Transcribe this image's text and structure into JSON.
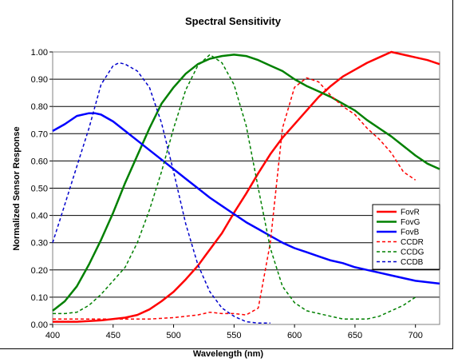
{
  "chart_data": {
    "type": "line",
    "title": "Spectral Sensitivity",
    "xlabel": "Wavelength (nm)",
    "ylabel": "Normalized Sensor Response",
    "xlim": [
      400,
      720
    ],
    "ylim": [
      0,
      1
    ],
    "xticks": [
      "400",
      "450",
      "500",
      "550",
      "600",
      "650",
      "700"
    ],
    "yticks": [
      "0.00",
      "0.10",
      "0.20",
      "0.30",
      "0.40",
      "0.50",
      "0.60",
      "0.70",
      "0.80",
      "0.90",
      "1.00"
    ],
    "grid": "horizontal",
    "legend_position": "right",
    "series": [
      {
        "name": "FovR",
        "color": "#ff0000",
        "dash": "solid",
        "x": [
          400,
          420,
          440,
          460,
          470,
          480,
          490,
          500,
          510,
          520,
          530,
          540,
          550,
          560,
          570,
          580,
          590,
          600,
          610,
          620,
          630,
          640,
          650,
          660,
          670,
          680,
          690,
          700,
          710,
          720
        ],
        "y": [
          0.01,
          0.01,
          0.015,
          0.025,
          0.035,
          0.055,
          0.085,
          0.12,
          0.165,
          0.215,
          0.275,
          0.335,
          0.41,
          0.48,
          0.555,
          0.625,
          0.685,
          0.735,
          0.785,
          0.835,
          0.875,
          0.91,
          0.935,
          0.96,
          0.98,
          1.0,
          0.99,
          0.98,
          0.97,
          0.955
        ]
      },
      {
        "name": "FovG",
        "color": "#008000",
        "dash": "solid",
        "x": [
          400,
          410,
          420,
          430,
          440,
          450,
          460,
          470,
          480,
          490,
          500,
          510,
          520,
          530,
          540,
          550,
          560,
          570,
          580,
          590,
          600,
          610,
          620,
          630,
          640,
          650,
          660,
          670,
          680,
          690,
          700,
          710,
          720
        ],
        "y": [
          0.05,
          0.085,
          0.14,
          0.22,
          0.31,
          0.41,
          0.52,
          0.62,
          0.72,
          0.81,
          0.87,
          0.92,
          0.955,
          0.975,
          0.985,
          0.99,
          0.985,
          0.97,
          0.95,
          0.93,
          0.9,
          0.875,
          0.855,
          0.835,
          0.81,
          0.785,
          0.75,
          0.72,
          0.69,
          0.655,
          0.62,
          0.59,
          0.57
        ]
      },
      {
        "name": "FovB",
        "color": "#0000ff",
        "dash": "solid",
        "x": [
          400,
          410,
          420,
          430,
          435,
          440,
          450,
          460,
          470,
          480,
          490,
          500,
          510,
          520,
          530,
          540,
          550,
          560,
          570,
          580,
          590,
          600,
          610,
          620,
          630,
          640,
          650,
          660,
          670,
          680,
          690,
          700,
          710,
          720
        ],
        "y": [
          0.71,
          0.735,
          0.765,
          0.775,
          0.775,
          0.77,
          0.745,
          0.71,
          0.675,
          0.64,
          0.605,
          0.57,
          0.535,
          0.5,
          0.465,
          0.435,
          0.405,
          0.375,
          0.35,
          0.325,
          0.3,
          0.28,
          0.265,
          0.25,
          0.235,
          0.225,
          0.21,
          0.2,
          0.19,
          0.18,
          0.17,
          0.16,
          0.155,
          0.15
        ]
      },
      {
        "name": "CCDR",
        "color": "#ff0000",
        "dash": "dashed",
        "x": [
          400,
          460,
          480,
          500,
          520,
          530,
          540,
          550,
          560,
          570,
          580,
          590,
          600,
          610,
          620,
          630,
          640,
          650,
          660,
          670,
          680,
          690,
          700
        ],
        "y": [
          0.02,
          0.02,
          0.02,
          0.025,
          0.035,
          0.045,
          0.04,
          0.04,
          0.035,
          0.06,
          0.3,
          0.72,
          0.87,
          0.905,
          0.89,
          0.84,
          0.8,
          0.77,
          0.72,
          0.68,
          0.63,
          0.56,
          0.53
        ]
      },
      {
        "name": "CCDG",
        "color": "#008000",
        "dash": "dashed",
        "x": [
          400,
          410,
          420,
          430,
          440,
          450,
          460,
          470,
          480,
          490,
          500,
          510,
          520,
          530,
          540,
          550,
          560,
          570,
          580,
          590,
          600,
          610,
          620,
          630,
          640,
          650,
          660,
          670,
          680,
          690,
          700
        ],
        "y": [
          0.04,
          0.04,
          0.045,
          0.07,
          0.11,
          0.16,
          0.21,
          0.3,
          0.42,
          0.56,
          0.72,
          0.86,
          0.95,
          0.99,
          0.96,
          0.88,
          0.73,
          0.5,
          0.28,
          0.14,
          0.08,
          0.05,
          0.04,
          0.03,
          0.02,
          0.02,
          0.02,
          0.03,
          0.05,
          0.07,
          0.1
        ]
      },
      {
        "name": "CCDB",
        "color": "#0000cc",
        "dash": "dashed",
        "x": [
          400,
          410,
          420,
          430,
          440,
          450,
          455,
          460,
          470,
          480,
          490,
          500,
          510,
          520,
          530,
          540,
          550,
          560,
          570,
          580
        ],
        "y": [
          0.3,
          0.44,
          0.58,
          0.72,
          0.88,
          0.95,
          0.96,
          0.955,
          0.93,
          0.87,
          0.74,
          0.56,
          0.37,
          0.22,
          0.12,
          0.06,
          0.03,
          0.01,
          0.005,
          0.005
        ]
      }
    ]
  }
}
